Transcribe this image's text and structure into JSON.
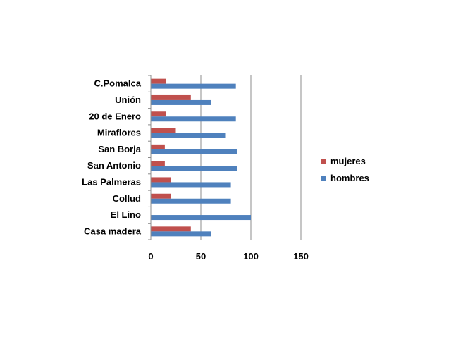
{
  "chart_data": {
    "type": "bar",
    "orientation": "horizontal",
    "categories": [
      "C.Pomalca",
      "Unión",
      "20 de Enero",
      "Miraflores",
      "San Borja",
      "San Antonio",
      "Las Palmeras",
      "Collud",
      "El Lino",
      "Casa madera"
    ],
    "series": [
      {
        "name": "mujeres",
        "color": "#c0504d",
        "values": [
          15,
          40,
          15,
          25,
          14,
          14,
          20,
          20,
          0,
          40
        ]
      },
      {
        "name": "hombres",
        "color": "#4f81bd",
        "values": [
          85,
          60,
          85,
          75,
          86,
          86,
          80,
          80,
          100,
          60
        ]
      }
    ],
    "xlim": [
      0,
      150
    ],
    "xticks": [
      0,
      50,
      100,
      150
    ],
    "gridlines": "vertical",
    "legend_position": "right",
    "title": "",
    "xlabel": "",
    "ylabel": ""
  }
}
